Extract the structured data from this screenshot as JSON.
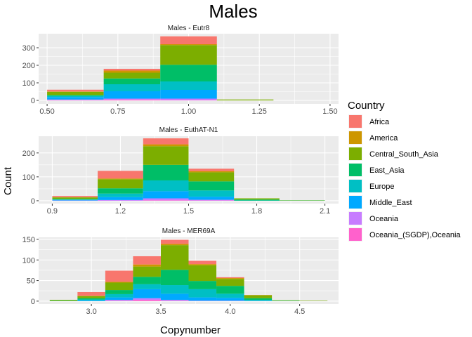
{
  "title": "Males",
  "xlabel": "Copynumber",
  "ylabel": "Count",
  "legend": {
    "title": "Country",
    "position": "right",
    "items": [
      {
        "name": "Africa",
        "color": "#F8766D"
      },
      {
        "name": "America",
        "color": "#CD9600"
      },
      {
        "name": "Central_South_Asia",
        "color": "#7CAE00"
      },
      {
        "name": "East_Asia",
        "color": "#00BE67"
      },
      {
        "name": "Europe",
        "color": "#00BFC4"
      },
      {
        "name": "Middle_East",
        "color": "#00A9FF"
      },
      {
        "name": "Oceania",
        "color": "#C77CFF"
      },
      {
        "name": "Oceania_(SGDP),Oceania",
        "color": "#FF61CC"
      }
    ]
  },
  "chart_data": [
    {
      "type": "bar",
      "title": "Males - Eutr8",
      "xlim": [
        0.47,
        1.53
      ],
      "ylim": [
        -20,
        380
      ],
      "xticks": [
        "0.50",
        "0.75",
        "1.00",
        "1.25",
        "1.50"
      ],
      "xtick_values": [
        0.5,
        0.75,
        1.0,
        1.25,
        1.5
      ],
      "yticks": [
        0,
        100,
        200,
        300
      ],
      "bins": [
        {
          "x0": 0.5,
          "x1": 0.7,
          "segments": [
            10,
            2,
            18,
            6,
            6,
            14,
            3,
            2
          ]
        },
        {
          "x0": 0.7,
          "x1": 0.9,
          "segments": [
            10,
            12,
            33,
            33,
            40,
            42,
            5,
            5
          ]
        },
        {
          "x0": 0.9,
          "x1": 1.1,
          "segments": [
            45,
            5,
            112,
            95,
            48,
            50,
            8,
            2
          ]
        },
        {
          "x0": 1.1,
          "x1": 1.3,
          "segments": [
            0,
            0,
            5,
            0,
            0,
            0,
            0,
            0
          ]
        }
      ]
    },
    {
      "type": "bar",
      "title": "Males - EuthAT-N1",
      "xlim": [
        0.84,
        2.16
      ],
      "ylim": [
        -12,
        270
      ],
      "xticks": [
        "0.9",
        "1.2",
        "1.5",
        "1.8",
        "2.1"
      ],
      "xtick_values": [
        0.9,
        1.2,
        1.5,
        1.8,
        2.1
      ],
      "yticks": [
        0,
        100,
        200
      ],
      "bins": [
        {
          "x0": 0.9,
          "x1": 1.1,
          "segments": [
            5,
            1,
            6,
            3,
            2,
            2,
            1,
            0
          ]
        },
        {
          "x0": 1.1,
          "x1": 1.3,
          "segments": [
            32,
            3,
            38,
            22,
            15,
            12,
            3,
            0
          ]
        },
        {
          "x0": 1.3,
          "x1": 1.5,
          "segments": [
            25,
            8,
            78,
            65,
            45,
            30,
            8,
            2
          ]
        },
        {
          "x0": 1.5,
          "x1": 1.7,
          "segments": [
            10,
            5,
            38,
            38,
            26,
            13,
            3,
            1
          ]
        },
        {
          "x0": 1.7,
          "x1": 1.9,
          "segments": [
            0,
            0,
            5,
            4,
            1,
            0,
            0,
            0
          ]
        },
        {
          "x0": 1.9,
          "x1": 2.1,
          "segments": [
            0,
            0,
            1,
            1,
            0,
            0,
            0,
            0
          ]
        }
      ]
    },
    {
      "type": "bar",
      "title": "Males - MER69A",
      "xlim": [
        2.62,
        4.78
      ],
      "ylim": [
        -7,
        155
      ],
      "xticks": [
        "3.0",
        "3.5",
        "4.0",
        "4.5"
      ],
      "xtick_values": [
        3.0,
        3.5,
        4.0,
        4.5
      ],
      "yticks": [
        0,
        50,
        100,
        150
      ],
      "bins": [
        {
          "x0": 2.7,
          "x1": 2.9,
          "segments": [
            0,
            0,
            2,
            1,
            0,
            0,
            0,
            0
          ]
        },
        {
          "x0": 2.9,
          "x1": 3.1,
          "segments": [
            9,
            1,
            5,
            3,
            2,
            2,
            0,
            0
          ]
        },
        {
          "x0": 3.1,
          "x1": 3.3,
          "segments": [
            27,
            2,
            18,
            10,
            8,
            6,
            2,
            1
          ]
        },
        {
          "x0": 3.3,
          "x1": 3.5,
          "segments": [
            20,
            5,
            25,
            18,
            12,
            22,
            4,
            3
          ]
        },
        {
          "x0": 3.5,
          "x1": 3.7,
          "segments": [
            10,
            3,
            60,
            37,
            21,
            15,
            2,
            1
          ]
        },
        {
          "x0": 3.7,
          "x1": 3.9,
          "segments": [
            8,
            3,
            38,
            20,
            20,
            8,
            1,
            0
          ]
        },
        {
          "x0": 3.9,
          "x1": 4.1,
          "segments": [
            2,
            2,
            17,
            19,
            10,
            7,
            1,
            0
          ]
        },
        {
          "x0": 4.1,
          "x1": 4.3,
          "segments": [
            0,
            1,
            7,
            4,
            2,
            1,
            0,
            0
          ]
        },
        {
          "x0": 4.3,
          "x1": 4.5,
          "segments": [
            0,
            0,
            1,
            1,
            0,
            0,
            0,
            0
          ]
        },
        {
          "x0": 4.5,
          "x1": 4.7,
          "segments": [
            0,
            0,
            1,
            0,
            0,
            0,
            0,
            0
          ]
        }
      ]
    }
  ]
}
